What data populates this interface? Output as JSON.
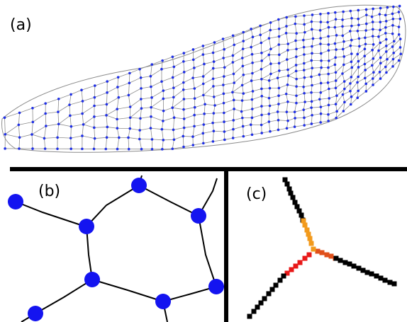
{
  "figure": {
    "panel_a": {
      "label": "(a)"
    },
    "panel_b": {
      "label": "(b)"
    },
    "panel_c": {
      "label": "(c)"
    }
  },
  "colors": {
    "background": "#ffffff",
    "divider": "#000000",
    "wing_vein": "#8c8c8c",
    "wing_node": "#1f2fe6",
    "node_blob": "#1414f0",
    "segment_black": "#000000",
    "segment_orange": "#f29a1c",
    "segment_red": "#e81818",
    "segment_darkorange": "#e0501a"
  }
}
